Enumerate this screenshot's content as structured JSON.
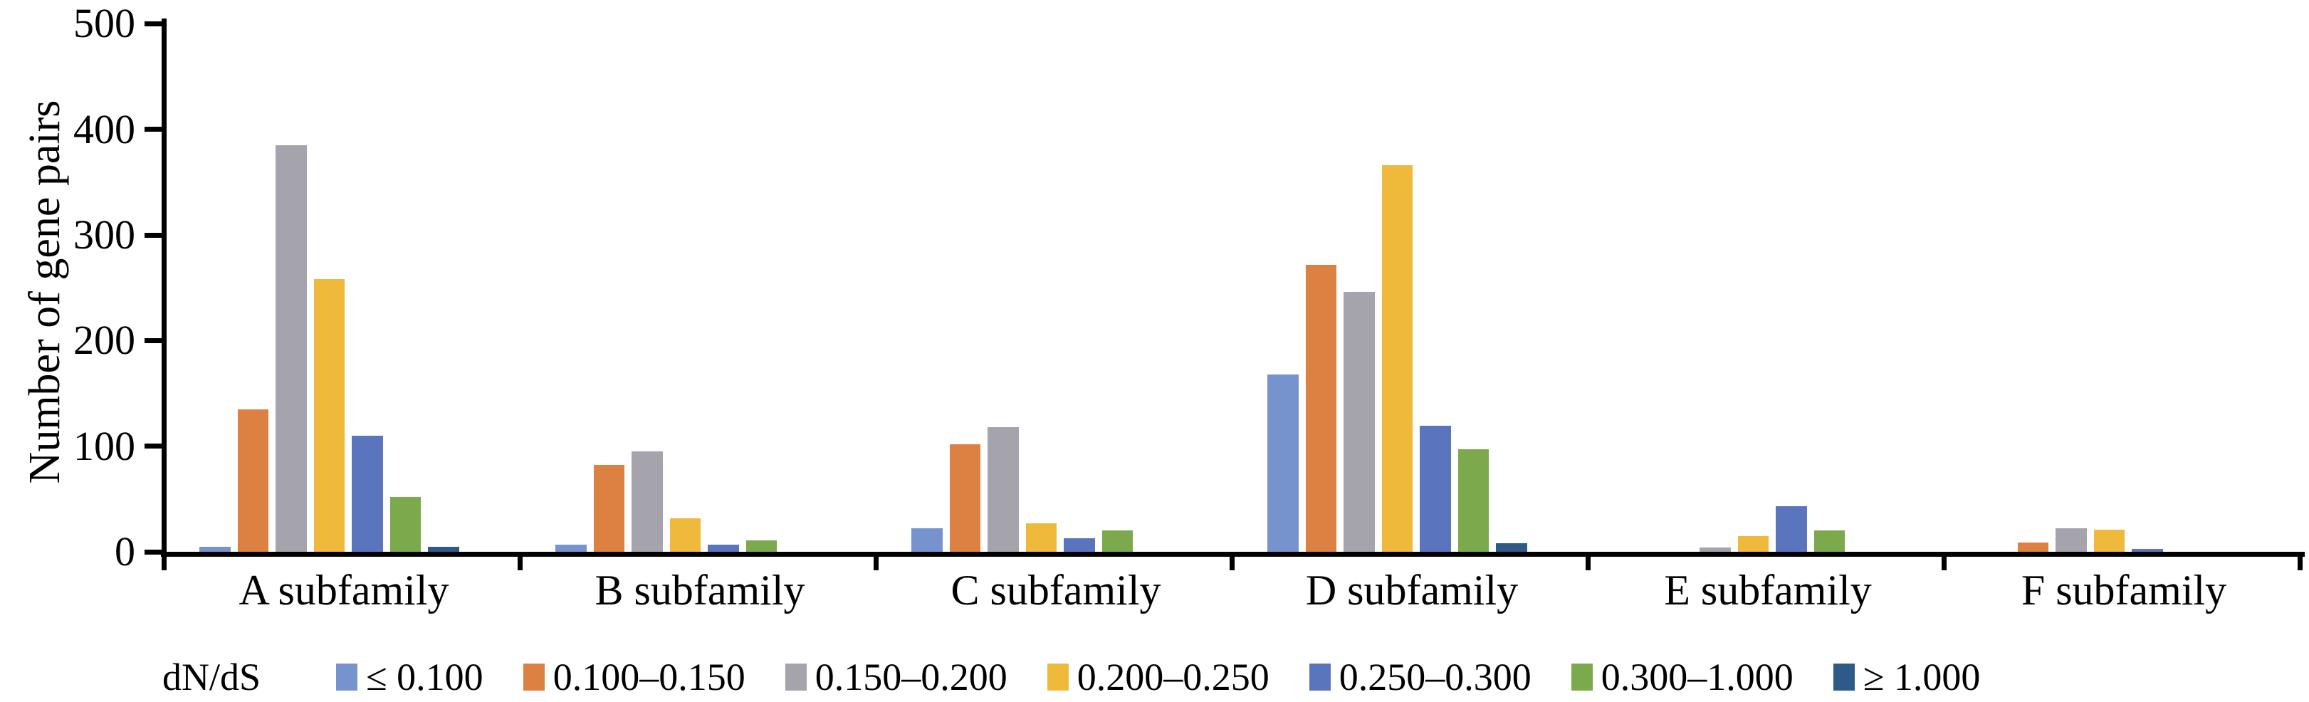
{
  "chart_data": {
    "type": "bar",
    "title": "",
    "xlabel": "",
    "ylabel": "Number of gene pairs",
    "ylim": [
      0,
      500
    ],
    "yticks": [
      0,
      100,
      200,
      300,
      400,
      500
    ],
    "grid": false,
    "legend_position": "bottom",
    "legend_title": "dN/dS",
    "categories": [
      "A subfamily",
      "B subfamily",
      "C subfamily",
      "D subfamily",
      "E subfamily",
      "F subfamily"
    ],
    "series": [
      {
        "name": "≤ 0.100",
        "color": "#7693CE",
        "values": [
          5,
          7,
          22,
          168,
          0,
          0
        ]
      },
      {
        "name": "0.100–0.150",
        "color": "#DD8143",
        "values": [
          135,
          82,
          102,
          272,
          0,
          9
        ]
      },
      {
        "name": "0.150–0.200",
        "color": "#A5A3AB",
        "values": [
          385,
          95,
          118,
          246,
          4,
          22
        ]
      },
      {
        "name": "0.200–0.250",
        "color": "#EFBA3C",
        "values": [
          258,
          32,
          27,
          366,
          15,
          21
        ]
      },
      {
        "name": "0.250–0.300",
        "color": "#5B74BE",
        "values": [
          110,
          7,
          13,
          119,
          43,
          3
        ]
      },
      {
        "name": "0.300–1.000",
        "color": "#7CA94C",
        "values": [
          52,
          11,
          20,
          97,
          20,
          0
        ]
      },
      {
        "name": "≥ 1.000",
        "color": "#2E5A87",
        "values": [
          5,
          0,
          0,
          8,
          0,
          0
        ]
      }
    ],
    "axis_color": "#000000",
    "background_color": "#FFFFFF"
  }
}
